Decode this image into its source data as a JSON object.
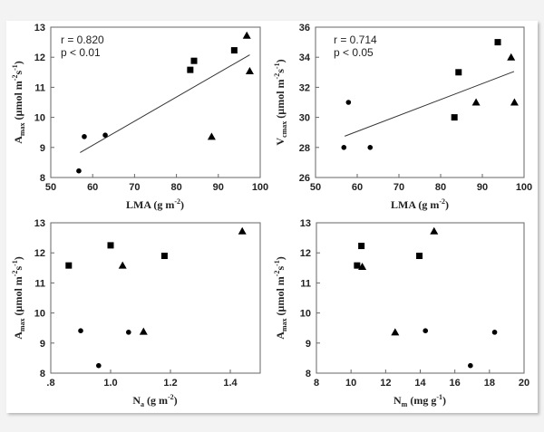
{
  "figure": {
    "background": "#f3f3f3",
    "panel_background": "#ffffff",
    "marker_color": "#000000",
    "axis_color": "#666666"
  },
  "chart_data": [
    {
      "type": "scatter",
      "id": "amax-vs-lma",
      "title": "",
      "xlabel": "LMA (g m-2)",
      "ylabel": "Amax (µmol m-2s-1)",
      "xlim": [
        50,
        100
      ],
      "ylim": [
        8,
        13
      ],
      "xticks": [
        50,
        60,
        70,
        80,
        90,
        100
      ],
      "xtick_labels": [
        "50",
        "60",
        "70",
        "80",
        "90",
        "100"
      ],
      "yticks": [
        8,
        9,
        10,
        11,
        12,
        13
      ],
      "ytick_labels": [
        "8",
        "9",
        "10",
        "11",
        "12",
        "13"
      ],
      "grid": false,
      "annotations": [
        "r = 0.820",
        "p < 0.01"
      ],
      "regression_line": {
        "x": [
          57,
          97.5
        ],
        "y": [
          8.83,
          12.08
        ]
      },
      "series": [
        {
          "name": "circle",
          "marker": "circle",
          "points": [
            [
              56.7,
              8.22
            ],
            [
              58.0,
              9.36
            ],
            [
              63.0,
              9.41
            ]
          ]
        },
        {
          "name": "square",
          "marker": "square",
          "points": [
            [
              83.3,
              11.58
            ],
            [
              84.2,
              11.88
            ],
            [
              93.8,
              12.23
            ]
          ]
        },
        {
          "name": "triangle",
          "marker": "triangle",
          "points": [
            [
              96.8,
              12.72
            ],
            [
              97.5,
              11.54
            ],
            [
              88.4,
              9.36
            ]
          ]
        }
      ]
    },
    {
      "type": "scatter",
      "id": "vcmax-vs-lma",
      "title": "",
      "xlabel": "LMA (g m-2)",
      "ylabel": "Vcmax (µmol m-2s-1)",
      "xlim": [
        50,
        100
      ],
      "ylim": [
        26,
        36
      ],
      "xticks": [
        50,
        60,
        70,
        80,
        90,
        100
      ],
      "xtick_labels": [
        "50",
        "60",
        "70",
        "80",
        "90",
        "100"
      ],
      "yticks": [
        26,
        28,
        30,
        32,
        34,
        36
      ],
      "ytick_labels": [
        "26",
        "28",
        "30",
        "32",
        "34",
        "36"
      ],
      "grid": false,
      "annotations": [
        "r = 0.714",
        "p < 0.05"
      ],
      "regression_line": {
        "x": [
          57,
          97.6
        ],
        "y": [
          28.75,
          33.05
        ]
      },
      "series": [
        {
          "name": "circle",
          "marker": "circle",
          "points": [
            [
              56.8,
              28.0
            ],
            [
              57.9,
              31.0
            ],
            [
              63.1,
              28.0
            ]
          ]
        },
        {
          "name": "square",
          "marker": "square",
          "points": [
            [
              83.3,
              30.0
            ],
            [
              84.3,
              33.0
            ],
            [
              93.7,
              35.0
            ]
          ]
        },
        {
          "name": "triangle",
          "marker": "triangle",
          "points": [
            [
              96.9,
              34.0
            ],
            [
              88.5,
              31.0
            ],
            [
              97.7,
              31.0
            ]
          ]
        }
      ]
    },
    {
      "type": "scatter",
      "id": "amax-vs-na",
      "title": "",
      "xlabel": "Na (g m-2)",
      "ylabel": "Amax (µmol m-2s-1)",
      "xlim": [
        0.8,
        1.5
      ],
      "ylim": [
        8,
        13
      ],
      "xticks": [
        0.8,
        1.0,
        1.2,
        1.4
      ],
      "xtick_labels": [
        ".8",
        "1.0",
        "1.2",
        "1.4"
      ],
      "yticks": [
        8,
        9,
        10,
        11,
        12,
        13
      ],
      "ytick_labels": [
        "8",
        "9",
        "10",
        "11",
        "12",
        "13"
      ],
      "grid": false,
      "annotations": [],
      "regression_line": null,
      "series": [
        {
          "name": "circle",
          "marker": "circle",
          "points": [
            [
              0.9,
              9.41
            ],
            [
              0.96,
              8.25
            ],
            [
              1.06,
              9.36
            ]
          ]
        },
        {
          "name": "square",
          "marker": "square",
          "points": [
            [
              0.86,
              11.58
            ],
            [
              1.0,
              12.25
            ],
            [
              1.18,
              11.9
            ]
          ]
        },
        {
          "name": "triangle",
          "marker": "triangle",
          "points": [
            [
              1.04,
              11.58
            ],
            [
              1.11,
              9.38
            ],
            [
              1.44,
              12.72
            ]
          ]
        }
      ]
    },
    {
      "type": "scatter",
      "id": "amax-vs-nm",
      "title": "",
      "xlabel": "Nm (mg g-1)",
      "ylabel": "Amax (µmol m-2s-1)",
      "xlim": [
        8,
        20
      ],
      "ylim": [
        8,
        13
      ],
      "xticks": [
        8,
        10,
        12,
        14,
        16,
        18,
        20
      ],
      "xtick_labels": [
        "8",
        "10",
        "12",
        "14",
        "16",
        "18",
        "20"
      ],
      "yticks": [
        8,
        9,
        10,
        11,
        12,
        13
      ],
      "ytick_labels": [
        "8",
        "9",
        "10",
        "11",
        "12",
        "13"
      ],
      "grid": false,
      "annotations": [],
      "regression_line": null,
      "series": [
        {
          "name": "circle",
          "marker": "circle",
          "points": [
            [
              14.3,
              9.41
            ],
            [
              16.9,
              8.25
            ],
            [
              18.3,
              9.36
            ]
          ]
        },
        {
          "name": "square",
          "marker": "square",
          "points": [
            [
              10.35,
              11.58
            ],
            [
              10.6,
              12.23
            ],
            [
              13.95,
              11.9
            ]
          ]
        },
        {
          "name": "triangle",
          "marker": "triangle",
          "points": [
            [
              10.65,
              11.54
            ],
            [
              12.55,
              9.36
            ],
            [
              14.8,
              12.72
            ]
          ]
        }
      ]
    }
  ],
  "labels": {
    "panel1": {
      "y_main": "A",
      "y_sub": "max",
      "y_unit": " (µmol m",
      "y_sup1": "-2",
      "y_mid": "s",
      "y_sup2": "-1",
      "y_end": ")",
      "x_main": "LMA (g m",
      "x_sup": "-2",
      "x_end": ")",
      "stat_r": "r = 0.820",
      "stat_p": "p < 0.01"
    },
    "panel2": {
      "y_main": "V",
      "y_sub": "cmax",
      "y_unit": " (µmol m",
      "y_sup1": "-2",
      "y_mid": "s",
      "y_sup2": "-1",
      "y_end": ")",
      "x_main": "LMA (g m",
      "x_sup": "-2",
      "x_end": ")",
      "stat_r": "r = 0.714",
      "stat_p": "p < 0.05"
    },
    "panel3": {
      "y_main": "A",
      "y_sub": "max",
      "y_unit": " (µmol m",
      "y_sup1": "-2",
      "y_mid": "s",
      "y_sup2": "-1",
      "y_end": ")",
      "x_main": "N",
      "x_sub": "a",
      "x_unit": " (g m",
      "x_sup": "-2",
      "x_end": ")"
    },
    "panel4": {
      "y_main": "A",
      "y_sub": "max",
      "y_unit": " (µmol m",
      "y_sup1": "-2",
      "y_mid": "s",
      "y_sup2": "-1",
      "y_end": ")",
      "x_main": "N",
      "x_sub": "m",
      "x_unit": " (mg g",
      "x_sup": "-1",
      "x_end": ")"
    }
  }
}
